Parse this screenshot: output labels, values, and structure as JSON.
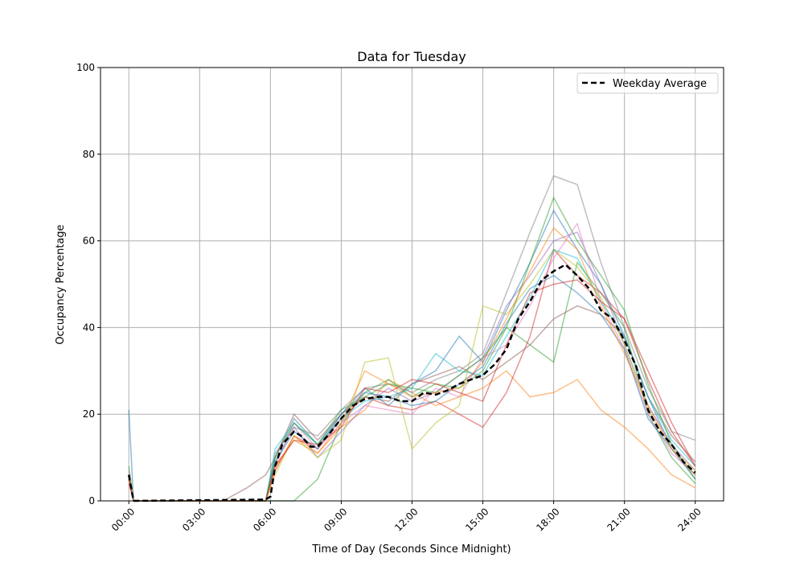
{
  "chart_data": {
    "type": "line",
    "title": "Data for Tuesday",
    "xlabel": "Time of Day (Seconds Since Midnight)",
    "ylabel": "Occupancy Percentage",
    "xlim": [
      -1.2,
      25.2
    ],
    "ylim": [
      0,
      100
    ],
    "x_unit": "hours",
    "xticks": [
      0,
      3,
      6,
      9,
      12,
      15,
      18,
      21,
      24
    ],
    "xtick_labels": [
      "00:00",
      "03:00",
      "06:00",
      "09:00",
      "12:00",
      "15:00",
      "18:00",
      "21:00",
      "24:00"
    ],
    "yticks": [
      0,
      20,
      40,
      60,
      80,
      100
    ],
    "ytick_labels": [
      "0",
      "20",
      "40",
      "60",
      "80",
      "100"
    ],
    "grid": true,
    "legend_position": "top-right",
    "legend": [
      {
        "label": "Weekday Average",
        "style": "dashed",
        "color": "#000000"
      }
    ],
    "average": {
      "name": "Weekday Average",
      "x": [
        0,
        0.2,
        5.8,
        6.0,
        6.2,
        6.5,
        7.0,
        7.3,
        7.7,
        8.0,
        8.5,
        9,
        9.5,
        10,
        10.5,
        11,
        11.5,
        12,
        12.5,
        13,
        13.5,
        14,
        14.5,
        15,
        15.5,
        16,
        16.5,
        17,
        17.5,
        18,
        18.5,
        19,
        19.5,
        20,
        20.5,
        21,
        21.5,
        22,
        22.5,
        23,
        23.5,
        24
      ],
      "y": [
        6,
        0,
        0.3,
        1,
        8,
        13,
        16,
        15,
        12.5,
        12.5,
        15.5,
        19,
        22,
        23.5,
        24,
        24,
        23,
        23,
        25,
        24.5,
        25.5,
        27,
        28,
        29,
        31.5,
        35,
        42,
        46,
        51,
        53,
        54.5,
        52,
        49,
        44,
        42,
        37,
        31,
        21,
        16,
        13,
        9,
        6.5
      ]
    },
    "day_series_x": [
      0,
      0.2,
      1,
      2,
      3,
      4,
      5,
      5.8,
      6.2,
      7,
      8,
      9,
      10,
      11,
      12,
      13,
      14,
      15,
      16,
      17,
      18,
      19,
      20,
      21,
      22,
      23,
      24
    ],
    "day_series": [
      {
        "color": "#1f77b4",
        "y": [
          21,
          0,
          0,
          0,
          0,
          0,
          0,
          0,
          10,
          19,
          13,
          20,
          26,
          22,
          27,
          30,
          38,
          32,
          44,
          55,
          67,
          58,
          50,
          38,
          24,
          12,
          5
        ]
      },
      {
        "color": "#ff7f0e",
        "y": [
          5,
          0,
          0,
          0,
          0,
          0,
          0,
          0,
          8,
          14,
          11,
          17,
          21,
          28,
          25,
          22,
          24,
          26,
          30,
          24,
          25,
          28,
          21,
          17,
          12,
          6,
          3
        ]
      },
      {
        "color": "#2ca02c",
        "y": [
          8,
          0,
          0,
          0,
          0,
          0,
          0,
          0,
          0,
          0,
          5,
          18,
          25,
          28,
          24,
          27,
          26,
          30,
          40,
          36,
          32,
          55,
          48,
          40,
          20,
          10,
          4
        ]
      },
      {
        "color": "#d62728",
        "y": [
          4,
          0,
          0,
          0,
          0,
          0,
          0,
          0,
          7,
          15,
          12,
          19,
          24,
          22,
          21,
          23,
          20,
          17,
          25,
          38,
          58,
          52,
          48,
          42,
          28,
          16,
          8
        ]
      },
      {
        "color": "#9467bd",
        "y": [
          6,
          0,
          0,
          0,
          0,
          0,
          0,
          0,
          9,
          17,
          10,
          16,
          22,
          26,
          23,
          25,
          29,
          33,
          45,
          52,
          60,
          62,
          50,
          36,
          22,
          13,
          7
        ]
      },
      {
        "color": "#8c564b",
        "y": [
          5,
          0,
          0,
          0,
          0,
          0,
          3,
          6,
          10,
          20,
          14,
          20,
          24,
          23,
          27,
          29,
          31,
          28,
          32,
          36,
          42,
          45,
          43,
          38,
          24,
          15,
          9
        ]
      },
      {
        "color": "#e377c2",
        "y": [
          7,
          0,
          0,
          0,
          0,
          0,
          0,
          0,
          8,
          18,
          12,
          18,
          22,
          21,
          20,
          26,
          24,
          33,
          36,
          45,
          56,
          64,
          46,
          35,
          20,
          11,
          6
        ]
      },
      {
        "color": "#7f7f7f",
        "y": [
          6,
          0,
          0,
          0,
          0,
          0,
          0,
          0,
          11,
          17,
          15,
          21,
          26,
          27,
          25,
          28,
          30,
          34,
          48,
          62,
          75,
          73,
          55,
          40,
          26,
          16,
          14
        ]
      },
      {
        "color": "#bcbd22",
        "y": [
          5,
          0,
          0,
          0,
          0,
          0,
          0,
          0,
          6,
          15,
          10,
          14,
          32,
          33,
          12,
          18,
          22,
          45,
          43,
          50,
          58,
          54,
          47,
          36,
          21,
          12,
          7
        ]
      },
      {
        "color": "#17becf",
        "y": [
          6,
          0,
          0,
          0,
          0,
          0,
          0,
          0,
          12,
          18,
          13,
          19,
          23,
          24,
          26,
          34,
          30,
          29,
          38,
          47,
          58,
          56,
          46,
          38,
          24,
          14,
          8
        ]
      },
      {
        "color": "#1f77b4",
        "y": [
          5,
          0,
          0,
          0,
          0,
          0,
          0,
          0,
          9,
          16,
          12,
          20,
          25,
          24,
          22,
          23,
          27,
          31,
          41,
          49,
          52,
          48,
          43,
          35,
          19,
          12,
          6
        ]
      },
      {
        "color": "#2ca02c",
        "y": [
          6,
          0,
          0,
          0,
          0,
          0,
          0,
          0,
          10,
          18,
          13,
          21,
          24,
          27,
          26,
          25,
          29,
          33,
          40,
          55,
          70,
          60,
          52,
          44,
          27,
          13,
          5
        ]
      },
      {
        "color": "#ff7f0e",
        "y": [
          5,
          0,
          0,
          0,
          0,
          0,
          0,
          0,
          7,
          15,
          11,
          18,
          30,
          27,
          24,
          25,
          26,
          32,
          42,
          53,
          63,
          58,
          45,
          34,
          22,
          12,
          6
        ]
      },
      {
        "color": "#d62728",
        "y": [
          6,
          0,
          0,
          0,
          0,
          0,
          0,
          0,
          8,
          14,
          13,
          17,
          26,
          25,
          28,
          27,
          25,
          23,
          36,
          48,
          50,
          51,
          46,
          42,
          30,
          18,
          8
        ]
      }
    ]
  }
}
